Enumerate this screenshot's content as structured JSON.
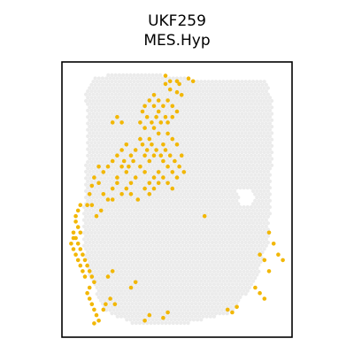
{
  "chart_data": {
    "type": "scatter",
    "title_lines": [
      "UKF259",
      "MES.Hyp"
    ],
    "xlabel": "",
    "ylabel": "",
    "grid": false,
    "legend": "none",
    "colors": {
      "background_spot": "#ebebeb",
      "highlighted_spot": "#f2b705",
      "frame": "#000000"
    },
    "series": [
      {
        "role": "background",
        "outline": [
          [
            0.1,
            0.9
          ],
          [
            0.15,
            0.95
          ],
          [
            0.35,
            0.96
          ],
          [
            0.55,
            0.94
          ],
          [
            0.88,
            0.94
          ],
          [
            0.92,
            0.86
          ],
          [
            0.91,
            0.55
          ],
          [
            0.9,
            0.35
          ],
          [
            0.84,
            0.2
          ],
          [
            0.74,
            0.09
          ],
          [
            0.55,
            0.05
          ],
          [
            0.3,
            0.05
          ],
          [
            0.18,
            0.1
          ],
          [
            0.12,
            0.22
          ],
          [
            0.09,
            0.35
          ],
          [
            0.1,
            0.55
          ],
          [
            0.11,
            0.75
          ]
        ],
        "holes": [
          [
            0.79,
            0.52
          ],
          [
            0.81,
            0.51
          ],
          [
            0.8,
            0.5
          ]
        ]
      },
      {
        "role": "highlighted",
        "points": [
          [
            0.42,
            0.6
          ],
          [
            0.4,
            0.58
          ],
          [
            0.38,
            0.56
          ],
          [
            0.36,
            0.6
          ],
          [
            0.34,
            0.62
          ],
          [
            0.32,
            0.58
          ],
          [
            0.3,
            0.56
          ],
          [
            0.28,
            0.6
          ],
          [
            0.26,
            0.62
          ],
          [
            0.24,
            0.58
          ],
          [
            0.22,
            0.54
          ],
          [
            0.2,
            0.5
          ],
          [
            0.18,
            0.52
          ],
          [
            0.16,
            0.56
          ],
          [
            0.14,
            0.58
          ],
          [
            0.13,
            0.55
          ],
          [
            0.12,
            0.52
          ],
          [
            0.24,
            0.66
          ],
          [
            0.26,
            0.68
          ],
          [
            0.28,
            0.7
          ],
          [
            0.3,
            0.66
          ],
          [
            0.32,
            0.68
          ],
          [
            0.34,
            0.72
          ],
          [
            0.36,
            0.66
          ],
          [
            0.38,
            0.64
          ],
          [
            0.4,
            0.66
          ],
          [
            0.44,
            0.64
          ],
          [
            0.46,
            0.62
          ],
          [
            0.48,
            0.6
          ],
          [
            0.5,
            0.58
          ],
          [
            0.44,
            0.7
          ],
          [
            0.42,
            0.74
          ],
          [
            0.4,
            0.76
          ],
          [
            0.38,
            0.72
          ],
          [
            0.36,
            0.76
          ],
          [
            0.34,
            0.78
          ],
          [
            0.46,
            0.74
          ],
          [
            0.48,
            0.72
          ],
          [
            0.5,
            0.7
          ],
          [
            0.52,
            0.66
          ],
          [
            0.2,
            0.62
          ],
          [
            0.22,
            0.64
          ],
          [
            0.18,
            0.6
          ],
          [
            0.16,
            0.62
          ],
          [
            0.28,
            0.54
          ],
          [
            0.3,
            0.52
          ],
          [
            0.26,
            0.52
          ],
          [
            0.22,
            0.5
          ],
          [
            0.24,
            0.56
          ],
          [
            0.36,
            0.54
          ],
          [
            0.38,
            0.52
          ],
          [
            0.4,
            0.54
          ],
          [
            0.42,
            0.56
          ],
          [
            0.44,
            0.58
          ],
          [
            0.46,
            0.56
          ],
          [
            0.48,
            0.54
          ],
          [
            0.33,
            0.5
          ],
          [
            0.31,
            0.64
          ],
          [
            0.29,
            0.62
          ],
          [
            0.27,
            0.64
          ],
          [
            0.35,
            0.7
          ],
          [
            0.37,
            0.68
          ],
          [
            0.39,
            0.7
          ],
          [
            0.41,
            0.68
          ],
          [
            0.43,
            0.66
          ],
          [
            0.45,
            0.68
          ],
          [
            0.47,
            0.66
          ],
          [
            0.49,
            0.64
          ],
          [
            0.51,
            0.62
          ],
          [
            0.53,
            0.6
          ],
          [
            0.39,
            0.78
          ],
          [
            0.41,
            0.8
          ],
          [
            0.43,
            0.78
          ],
          [
            0.45,
            0.8
          ],
          [
            0.37,
            0.8
          ],
          [
            0.35,
            0.82
          ],
          [
            0.4,
            0.84
          ],
          [
            0.42,
            0.82
          ],
          [
            0.36,
            0.84
          ],
          [
            0.38,
            0.86
          ],
          [
            0.4,
            0.88
          ],
          [
            0.42,
            0.86
          ],
          [
            0.44,
            0.84
          ],
          [
            0.46,
            0.86
          ],
          [
            0.48,
            0.84
          ],
          [
            0.5,
            0.82
          ],
          [
            0.47,
            0.9
          ],
          [
            0.5,
            0.89
          ],
          [
            0.52,
            0.88
          ],
          [
            0.51,
            0.92
          ],
          [
            0.45,
            0.92
          ],
          [
            0.22,
            0.78
          ],
          [
            0.24,
            0.8
          ],
          [
            0.26,
            0.78
          ],
          [
            0.46,
            0.78
          ],
          [
            0.48,
            0.8
          ],
          [
            0.45,
            0.95
          ],
          [
            0.47,
            0.93
          ],
          [
            0.5,
            0.93
          ],
          [
            0.55,
            0.94
          ],
          [
            0.57,
            0.93
          ],
          [
            0.06,
            0.42
          ],
          [
            0.07,
            0.4
          ],
          [
            0.08,
            0.38
          ],
          [
            0.06,
            0.36
          ],
          [
            0.07,
            0.34
          ],
          [
            0.08,
            0.32
          ],
          [
            0.09,
            0.3
          ],
          [
            0.1,
            0.28
          ],
          [
            0.11,
            0.26
          ],
          [
            0.12,
            0.24
          ],
          [
            0.13,
            0.22
          ],
          [
            0.14,
            0.2
          ],
          [
            0.12,
            0.18
          ],
          [
            0.11,
            0.16
          ],
          [
            0.12,
            0.14
          ],
          [
            0.13,
            0.12
          ],
          [
            0.14,
            0.1
          ],
          [
            0.15,
            0.08
          ],
          [
            0.16,
            0.06
          ],
          [
            0.14,
            0.05
          ],
          [
            0.1,
            0.22
          ],
          [
            0.09,
            0.24
          ],
          [
            0.08,
            0.26
          ],
          [
            0.07,
            0.28
          ],
          [
            0.06,
            0.3
          ],
          [
            0.05,
            0.32
          ],
          [
            0.05,
            0.38
          ],
          [
            0.06,
            0.44
          ],
          [
            0.07,
            0.46
          ],
          [
            0.08,
            0.48
          ],
          [
            0.04,
            0.34
          ],
          [
            0.05,
            0.36
          ],
          [
            0.11,
            0.48
          ],
          [
            0.13,
            0.48
          ],
          [
            0.15,
            0.44
          ],
          [
            0.17,
            0.46
          ],
          [
            0.19,
            0.12
          ],
          [
            0.21,
            0.14
          ],
          [
            0.23,
            0.12
          ],
          [
            0.18,
            0.1
          ],
          [
            0.2,
            0.22
          ],
          [
            0.22,
            0.24
          ],
          [
            0.3,
            0.18
          ],
          [
            0.32,
            0.2
          ],
          [
            0.36,
            0.06
          ],
          [
            0.38,
            0.08
          ],
          [
            0.44,
            0.07
          ],
          [
            0.46,
            0.09
          ],
          [
            0.72,
            0.1
          ],
          [
            0.74,
            0.09
          ],
          [
            0.76,
            0.11
          ],
          [
            0.88,
            0.14
          ],
          [
            0.86,
            0.16
          ],
          [
            0.84,
            0.18
          ],
          [
            0.9,
            0.24
          ],
          [
            0.88,
            0.28
          ],
          [
            0.86,
            0.3
          ],
          [
            0.92,
            0.34
          ],
          [
            0.94,
            0.3
          ],
          [
            0.96,
            0.28
          ],
          [
            0.62,
            0.44
          ],
          [
            0.9,
            0.38
          ]
        ]
      }
    ]
  }
}
